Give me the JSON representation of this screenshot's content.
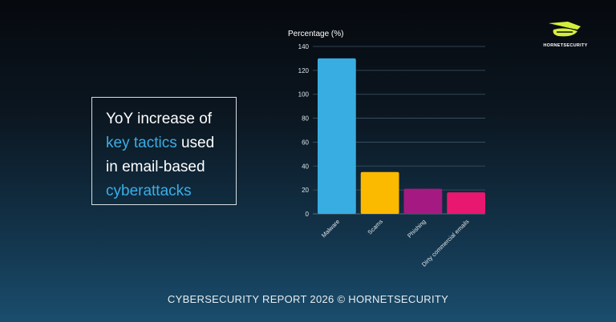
{
  "headline": {
    "line1": "YoY increase of",
    "line2_highlight": "key tactics",
    "line2_rest": " used",
    "line3": "in email-based",
    "line4_highlight": "cyberattacks"
  },
  "logo": {
    "text": "HORNETSECURITY",
    "color": "#d4ef3a"
  },
  "footer": "CYBERSECURITY REPORT 2026 © HORNETSECURITY",
  "colors": {
    "highlight": "#3aaee6"
  },
  "chart_data": {
    "type": "bar",
    "ylabel": "Percentage (%)",
    "xlabel": "",
    "categories": [
      "Malware",
      "Scams",
      "Phishing",
      "Dirty commercial emails"
    ],
    "values": [
      130,
      35,
      21,
      18
    ],
    "colors": [
      "#38ade2",
      "#fbb900",
      "#a51a82",
      "#e8176f"
    ],
    "ylim": [
      0,
      140
    ],
    "yticks": [
      0,
      20,
      40,
      60,
      80,
      100,
      120,
      140
    ],
    "grid": true,
    "legend": "none"
  }
}
